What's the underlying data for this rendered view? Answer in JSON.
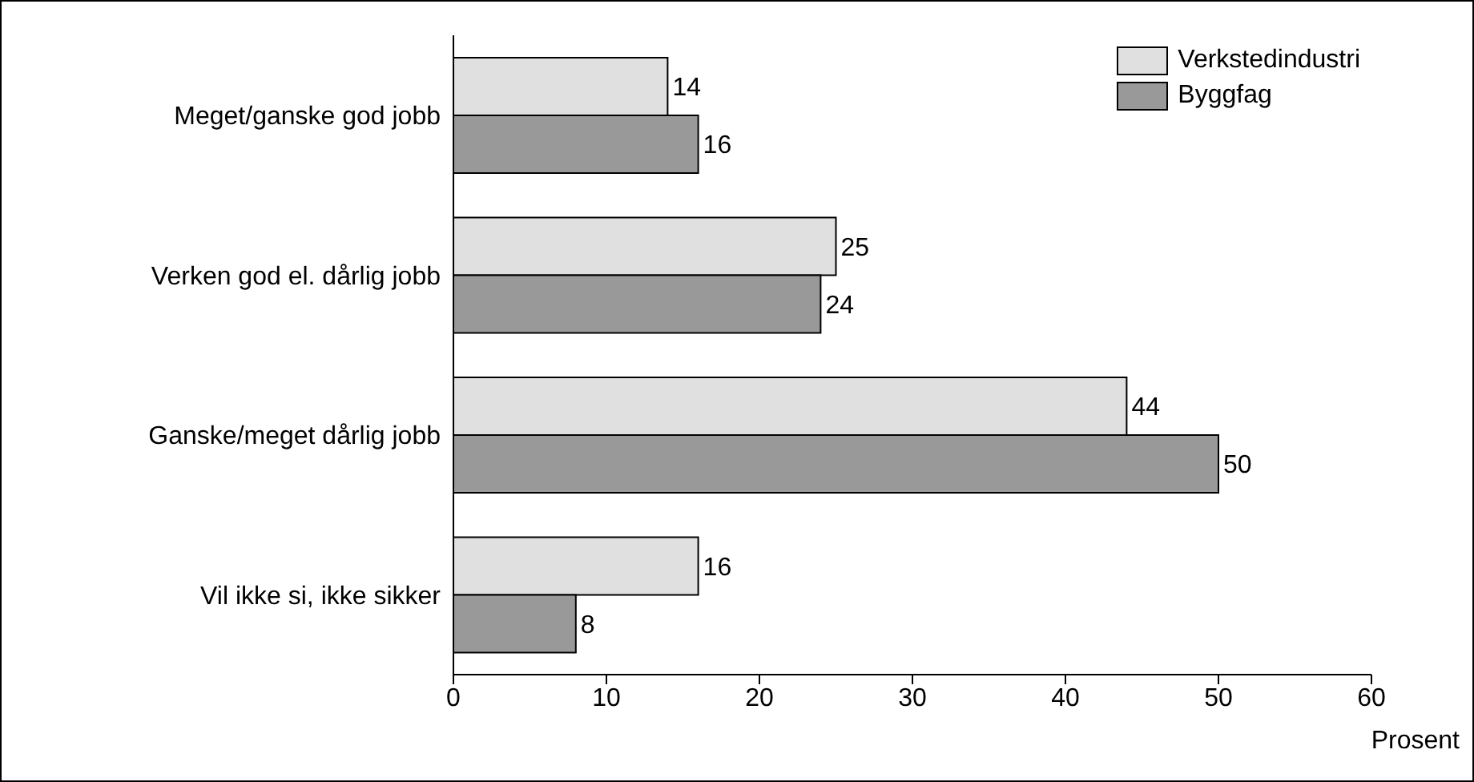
{
  "chart_data": {
    "type": "bar",
    "orientation": "horizontal",
    "categories": [
      "Meget/ganske god jobb",
      "Verken god el. dårlig jobb",
      "Ganske/meget dårlig jobb",
      "Vil ikke si, ikke sikker"
    ],
    "series": [
      {
        "name": "Verkstedindustri",
        "color": "#e0e0e0",
        "values": [
          14,
          25,
          44,
          16
        ]
      },
      {
        "name": "Byggfag",
        "color": "#999999",
        "values": [
          16,
          24,
          50,
          8
        ]
      }
    ],
    "xlim": [
      0,
      60
    ],
    "xticks": [
      0,
      10,
      20,
      30,
      40,
      50,
      60
    ],
    "xlabel": "Prosent",
    "data_labels": true,
    "legend": "top right",
    "grid": false
  }
}
